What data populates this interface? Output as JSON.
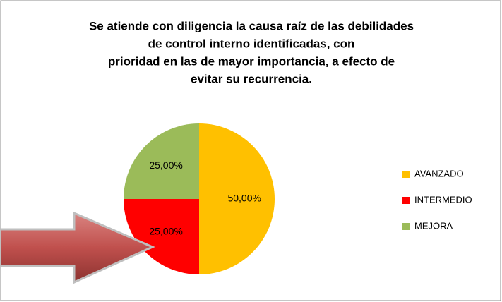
{
  "chart_data": {
    "type": "pie",
    "title": [
      "Se atiende con diligencia la causa raíz de las debilidades",
      "de control interno identificadas, con",
      "prioridad en las de mayor importancia, a efecto de",
      "evitar su recurrencia."
    ],
    "categories": [
      "AVANZADO",
      "INTERMEDIO",
      "MEJORA"
    ],
    "values": [
      50,
      25,
      25
    ],
    "value_labels": [
      "50,00%",
      "25,00%",
      "25,00%"
    ],
    "colors": [
      "#FFC000",
      "#FF0000",
      "#9BBB59"
    ],
    "legend": "right"
  }
}
